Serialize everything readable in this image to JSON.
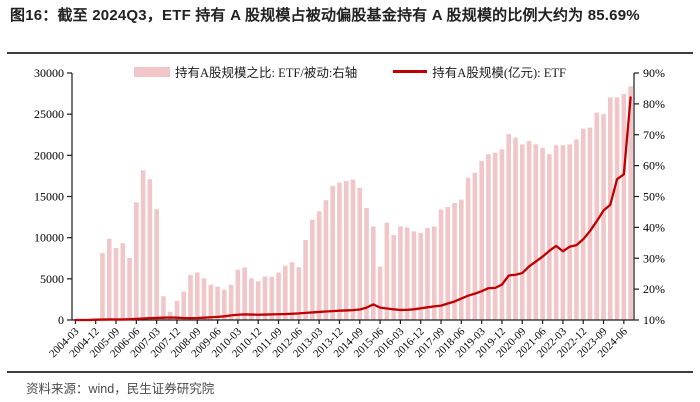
{
  "title": "图16：截至 2024Q3，ETF 持有 A 股规模占被动偏股基金持有 A 股规模的比例大约为 85.69%",
  "source": "资料来源：wind，民生证券研究院",
  "colors": {
    "bar_fill": "#f0c6c9",
    "line_stroke": "#c00000",
    "axis": "#1a1a1a",
    "title_text": "#212121",
    "divider": "#3d3d3d",
    "source_text": "#4a4a4a"
  },
  "legend": [
    {
      "type": "bar",
      "label": "持有A股规模之比: ETF/被动:右轴"
    },
    {
      "type": "line",
      "label": "持有A股规模(亿元): ETF"
    }
  ],
  "chart_data": {
    "type": "bar+line",
    "title": "图16：截至 2024Q3，ETF 持有 A 股规模占被动偏股基金持有 A 股规模的比例大约为 85.69%",
    "legend_position": "top-center",
    "grid": false,
    "left_axis": {
      "min": 0,
      "max": 30000,
      "step": 5000,
      "ticks": [
        0,
        5000,
        10000,
        15000,
        20000,
        25000,
        30000
      ]
    },
    "right_axis": {
      "min": 10,
      "max": 90,
      "step": 10,
      "unit": "%",
      "ticks": [
        10,
        20,
        30,
        40,
        50,
        60,
        70,
        80,
        90
      ]
    },
    "x_tick_labels": [
      "2004-03",
      "2004-12",
      "2005-09",
      "2006-06",
      "2007-03",
      "2007-12",
      "2008-09",
      "2009-06",
      "2010-03",
      "2010-12",
      "2011-09",
      "2012-06",
      "2013-03",
      "2013-12",
      "2014-09",
      "2015-06",
      "2016-03",
      "2016-12",
      "2017-09",
      "2018-06",
      "2019-03",
      "2019-12",
      "2020-09",
      "2021-06",
      "2022-03",
      "2022-12",
      "2023-09",
      "2024-06"
    ],
    "x_quarters": [
      "2004-03",
      "2004-06",
      "2004-09",
      "2004-12",
      "2005-03",
      "2005-06",
      "2005-09",
      "2005-12",
      "2006-03",
      "2006-06",
      "2006-09",
      "2006-12",
      "2007-03",
      "2007-06",
      "2007-09",
      "2007-12",
      "2008-03",
      "2008-06",
      "2008-09",
      "2008-12",
      "2009-03",
      "2009-06",
      "2009-09",
      "2009-12",
      "2010-03",
      "2010-06",
      "2010-09",
      "2010-12",
      "2011-03",
      "2011-06",
      "2011-09",
      "2011-12",
      "2012-03",
      "2012-06",
      "2012-09",
      "2012-12",
      "2013-03",
      "2013-06",
      "2013-09",
      "2013-12",
      "2014-03",
      "2014-06",
      "2014-09",
      "2014-12",
      "2015-03",
      "2015-06",
      "2015-09",
      "2015-12",
      "2016-03",
      "2016-06",
      "2016-09",
      "2016-12",
      "2017-03",
      "2017-06",
      "2017-09",
      "2017-12",
      "2018-03",
      "2018-06",
      "2018-09",
      "2018-12",
      "2019-03",
      "2019-06",
      "2019-09",
      "2019-12",
      "2020-03",
      "2020-06",
      "2020-09",
      "2020-12",
      "2021-03",
      "2021-06",
      "2021-09",
      "2021-12",
      "2022-03",
      "2022-06",
      "2022-09",
      "2022-12",
      "2023-03",
      "2023-06",
      "2023-09",
      "2023-12",
      "2024-03",
      "2024-06",
      "2024-09"
    ],
    "series": [
      {
        "name": "持有A股规模之比: ETF/被动:右轴",
        "type": "bar",
        "axis": "right",
        "unit": "%",
        "values": [
          10,
          10,
          10,
          10,
          31.7,
          36.3,
          33.3,
          34.9,
          30.1,
          48.1,
          58.5,
          55.6,
          45.9,
          17.7,
          12.7,
          16.2,
          19.2,
          24.6,
          25.4,
          23.5,
          21.4,
          20.8,
          19.8,
          21.4,
          26.3,
          27.0,
          23.5,
          22.5,
          24.1,
          24.0,
          25.4,
          27.6,
          28.7,
          27.1,
          35.9,
          42.5,
          45.2,
          48.8,
          53.4,
          54.5,
          55.0,
          55.5,
          52.8,
          46.3,
          40.3,
          27.3,
          41.5,
          37.5,
          40.3,
          40.0,
          38.7,
          38.2,
          39.8,
          40.3,
          45.8,
          46.6,
          47.9,
          49.0,
          56.1,
          57.7,
          61.5,
          63.7,
          64.2,
          65.3,
          70.2,
          69.1,
          66.9,
          68.0,
          66.9,
          65.8,
          63.7,
          66.6,
          66.6,
          66.9,
          68.5,
          72.0,
          72.3,
          77.2,
          76.7,
          82.1,
          82.1,
          83.2,
          85.69
        ]
      },
      {
        "name": "持有A股规模(亿元): ETF",
        "type": "line",
        "axis": "left",
        "unit": "亿元",
        "values": [
          2,
          3,
          5,
          40,
          55,
          65,
          60,
          70,
          90,
          130,
          180,
          230,
          250,
          280,
          300,
          280,
          240,
          230,
          240,
          280,
          330,
          380,
          450,
          560,
          640,
          680,
          660,
          640,
          660,
          680,
          700,
          720,
          760,
          800,
          870,
          920,
          980,
          1030,
          1080,
          1130,
          1160,
          1200,
          1280,
          1500,
          1900,
          1500,
          1400,
          1300,
          1220,
          1230,
          1300,
          1420,
          1540,
          1650,
          1750,
          2000,
          2250,
          2600,
          2950,
          3200,
          3500,
          3860,
          3900,
          4300,
          5400,
          5500,
          5700,
          6500,
          7100,
          7700,
          8400,
          9000,
          8350,
          8900,
          9100,
          9800,
          10800,
          12000,
          13300,
          14000,
          17100,
          17700,
          27030
        ]
      }
    ],
    "key_callout": {
      "label": "2024Q3 ETF/被动 比例",
      "value": "85.69%"
    }
  }
}
